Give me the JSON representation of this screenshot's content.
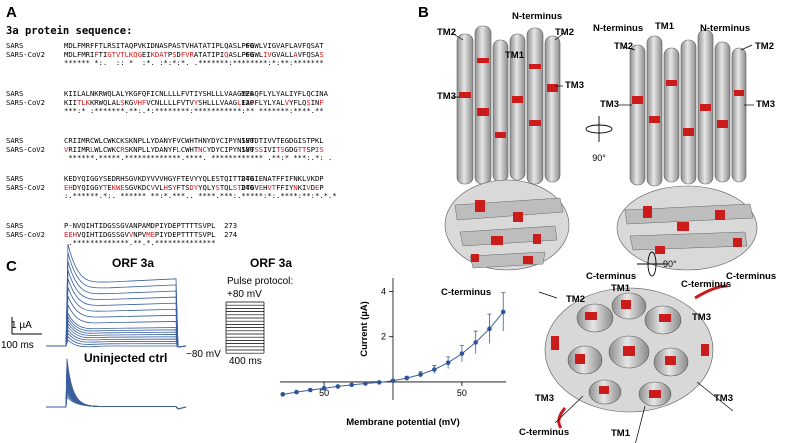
{
  "panels": {
    "a": "A",
    "b": "B",
    "c": "C"
  },
  "sequence": {
    "title": "3a protein sequence:",
    "blocks": [
      {
        "rows": [
          {
            "name": "SARS",
            "seq": "MDLFMRFFTLRSITAQPVKIDNASPASTVHATATIPLQASLPFGWLVIGVAFLAVFQSAT",
            "num": "60",
            "mut": []
          },
          {
            "name": "SARS-CoV2",
            "seq": "MDLFMRIFTIGTVTLKQGEIKDATPSDFVRATATIPIQASLPFGWLIVGVALLAVFQSAS",
            "num": "60",
            "mut": [
              7,
              10,
              11,
              12,
              13,
              14,
              15,
              16,
              17,
              20,
              21,
              22,
              23,
              25,
              27,
              28,
              29,
              37,
              46,
              47,
              53,
              59
            ]
          },
          {
            "name": "",
            "seq": "****** *:.  :: *  :*. :*:*:*. .*******:********:*:**:*******",
            "num": "",
            "mut": []
          }
        ]
      },
      {
        "rows": [
          {
            "name": "SARS",
            "seq": "KIILALNKRWQLALYKGFQFICNLLLLFVTIYSHLLLVAAGMEAQFLYLYALIYFLQCINA",
            "num": "120",
            "mut": []
          },
          {
            "name": "SARS-CoV2",
            "seq": "KIITLKKRWQLALSKGVHFVCNLLLLFVTVYSHLLLVAAGLEAPFLYLYALVYFLQSINF",
            "num": "120",
            "mut": [
              3,
              4,
              5,
              13,
              16,
              17,
              18,
              30,
              40,
              43,
              51,
              56,
              59
            ]
          },
          {
            "name": "",
            "seq": "***:* :*******.**:.*:********:***********:** *******:****.**",
            "num": "",
            "mut": []
          }
        ]
      },
      {
        "rows": [
          {
            "name": "SARS",
            "seq": "CRIIMRCWLCWKCKSKNPLLYDANYFVCWHTHNYDYCIPYNSVTDTIVVTEGDGISTPKL",
            "num": "180",
            "mut": []
          },
          {
            "name": "SARS-CoV2",
            "seq": "VRIIMRLWLCWKCRSKNPLLYDANYFLCWHTNCYDYCIPYNSVTSSIVITSGDGTTSPIS",
            "num": "180",
            "mut": [
              0,
              6,
              13,
              26,
              31,
              32,
              44,
              45,
              49,
              50,
              54,
              55,
              58,
              59
            ]
          },
          {
            "name": "",
            "seq": " ******.*****.*************.****. ************ .**:* ***:.*: .",
            "num": "",
            "mut": []
          }
        ]
      },
      {
        "rows": [
          {
            "name": "SARS",
            "seq": "KEDYQIGGYSEDRHSGVKDYVVVHGYFTEVYYQLESTQITTDTGIENATFFIFNKLVKDP",
            "num": "240",
            "mut": []
          },
          {
            "name": "SARS-CoV2",
            "seq": "EHDYQIGGYTEKWESGVKDCVVLHSYFTSDYYQLYSTQLSTDTGVEHVTFFIYNKIVDEP",
            "num": "240",
            "mut": [
              0,
              1,
              9,
              11,
              12,
              13,
              20,
              23,
              25,
              29,
              30,
              35,
              39,
              40,
              45,
              47,
              48,
              53,
              56,
              58
            ]
          },
          {
            "name": "",
            "seq": ":.******.*:. ****** **:*.***.. ****.***:.*****:*:.****:**:*.*.*",
            "num": "",
            "mut": []
          }
        ]
      },
      {
        "rows": [
          {
            "name": "SARS",
            "seq": "P-NVQIHTIDGSSGVANPAMDPIYDEPTTTTSVPL  273",
            "num": "",
            "mut": []
          },
          {
            "name": "SARS-CoV2",
            "seq": "EEHVQIHTIDGSSGVVNPVMEPIYDEPTTTTSVPL  274",
            "num": "",
            "mut": [
              0,
              1,
              2,
              15,
              19,
              20
            ]
          },
          {
            "name": "",
            "seq": " .*************.**.*.**************",
            "num": "",
            "mut": []
          }
        ]
      }
    ]
  },
  "structure": {
    "n_terminus": "N-terminus",
    "c_terminus": "C-terminus",
    "tm1": "TM1",
    "tm2": "TM2",
    "tm3": "TM3",
    "rotation": "90°"
  },
  "electrophysiology": {
    "orf3a_title": "ORF 3a",
    "uninjected_title": "Uninjected ctrl",
    "pulse_protocol": "Pulse protocol:",
    "v_high": "+80 mV",
    "v_low": "−80 mV",
    "time_protocol": "400 ms",
    "scale_current": "1 µA",
    "scale_time": "100 ms"
  },
  "chart_data": {
    "type": "scatter",
    "title": "ORF 3a",
    "xlabel": "Membrane potential (mV)",
    "ylabel": "Current (µA)",
    "xlim": [
      -82,
      82
    ],
    "ylim": [
      -0.8,
      4.6
    ],
    "x_ticks": [
      "50",
      "50"
    ],
    "y_ticks": [
      "2",
      "4"
    ],
    "x": [
      -80,
      -70,
      -60,
      -50,
      -40,
      -30,
      -20,
      -10,
      0,
      10,
      20,
      30,
      40,
      50,
      60,
      70,
      80
    ],
    "y": [
      -0.55,
      -0.45,
      -0.36,
      -0.28,
      -0.2,
      -0.13,
      -0.07,
      -0.02,
      0.05,
      0.17,
      0.33,
      0.55,
      0.85,
      1.25,
      1.75,
      2.35,
      3.1
    ],
    "err": [
      0.05,
      0.05,
      0.05,
      0.05,
      0.04,
      0.04,
      0.04,
      0.03,
      0.05,
      0.08,
      0.12,
      0.18,
      0.26,
      0.36,
      0.5,
      0.65,
      0.85
    ]
  }
}
